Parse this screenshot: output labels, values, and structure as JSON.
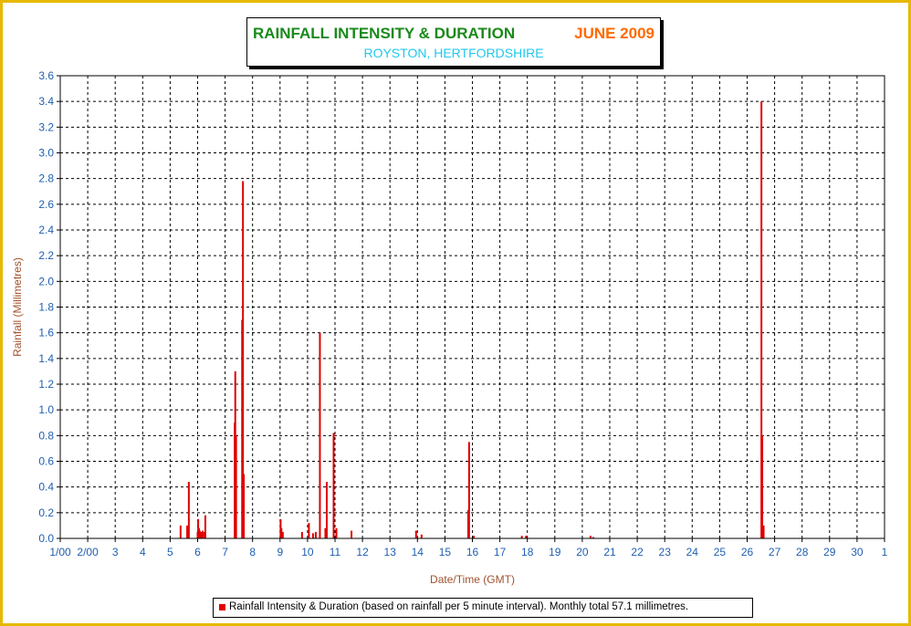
{
  "chart_data": {
    "type": "bar",
    "title": "RAINFALL INTENSITY & DURATION",
    "title_month": "JUNE 2009",
    "subtitle": "ROYSTON, HERTFORDSHIRE",
    "xlabel": "Date/Time (GMT)",
    "ylabel": "Rainfall (Millimetres)",
    "ylim": [
      0,
      3.6
    ],
    "xlim": [
      0,
      30
    ],
    "y_ticks": [
      "0.0",
      "0.2",
      "0.4",
      "0.6",
      "0.8",
      "1.0",
      "1.2",
      "1.4",
      "1.6",
      "1.8",
      "2.0",
      "2.2",
      "2.4",
      "2.6",
      "2.8",
      "3.0",
      "3.2",
      "3.4",
      "3.6"
    ],
    "x_ticks": [
      "1/00",
      "2/00",
      "3",
      "4",
      "5",
      "6",
      "7",
      "8",
      "9",
      "10",
      "11",
      "12",
      "13",
      "14",
      "15",
      "16",
      "17",
      "18",
      "19",
      "20",
      "21",
      "22",
      "23",
      "24",
      "25",
      "26",
      "27",
      "28",
      "29",
      "30",
      "1"
    ],
    "grid": true,
    "legend_position": "bottom",
    "series": [
      {
        "name": "Rainfall Intensity & Duration (based on rainfall per 5 minute interval). Monthly total 57.1 millimetres.",
        "color": "#e00000",
        "points": [
          {
            "x": 4.38,
            "y": 0.1
          },
          {
            "x": 4.62,
            "y": 0.1
          },
          {
            "x": 4.68,
            "y": 0.44
          },
          {
            "x": 5.0,
            "y": 0.05
          },
          {
            "x": 5.02,
            "y": 0.15
          },
          {
            "x": 5.05,
            "y": 0.08
          },
          {
            "x": 5.08,
            "y": 0.06
          },
          {
            "x": 5.12,
            "y": 0.05
          },
          {
            "x": 5.18,
            "y": 0.06
          },
          {
            "x": 5.25,
            "y": 0.05
          },
          {
            "x": 5.28,
            "y": 0.18
          },
          {
            "x": 6.35,
            "y": 0.9
          },
          {
            "x": 6.37,
            "y": 1.3
          },
          {
            "x": 6.4,
            "y": 0.8
          },
          {
            "x": 6.62,
            "y": 1.7
          },
          {
            "x": 6.65,
            "y": 2.78
          },
          {
            "x": 6.68,
            "y": 0.5
          },
          {
            "x": 8.02,
            "y": 0.15
          },
          {
            "x": 8.05,
            "y": 0.08
          },
          {
            "x": 8.1,
            "y": 0.05
          },
          {
            "x": 8.8,
            "y": 0.05
          },
          {
            "x": 9.05,
            "y": 0.12
          },
          {
            "x": 9.2,
            "y": 0.04
          },
          {
            "x": 9.3,
            "y": 0.05
          },
          {
            "x": 9.45,
            "y": 1.6
          },
          {
            "x": 9.65,
            "y": 0.08
          },
          {
            "x": 9.7,
            "y": 0.44
          },
          {
            "x": 9.95,
            "y": 0.82
          },
          {
            "x": 10.05,
            "y": 0.08
          },
          {
            "x": 10.6,
            "y": 0.06
          },
          {
            "x": 12.95,
            "y": 0.06
          },
          {
            "x": 13.15,
            "y": 0.03
          },
          {
            "x": 14.85,
            "y": 0.22
          },
          {
            "x": 14.88,
            "y": 0.75
          },
          {
            "x": 15.05,
            "y": 0.02
          },
          {
            "x": 16.8,
            "y": 0.02
          },
          {
            "x": 16.95,
            "y": 0.02
          },
          {
            "x": 19.3,
            "y": 0.02
          },
          {
            "x": 19.4,
            "y": 0.01
          },
          {
            "x": 25.52,
            "y": 3.4
          },
          {
            "x": 25.55,
            "y": 0.8
          },
          {
            "x": 25.6,
            "y": 0.1
          }
        ]
      }
    ]
  }
}
